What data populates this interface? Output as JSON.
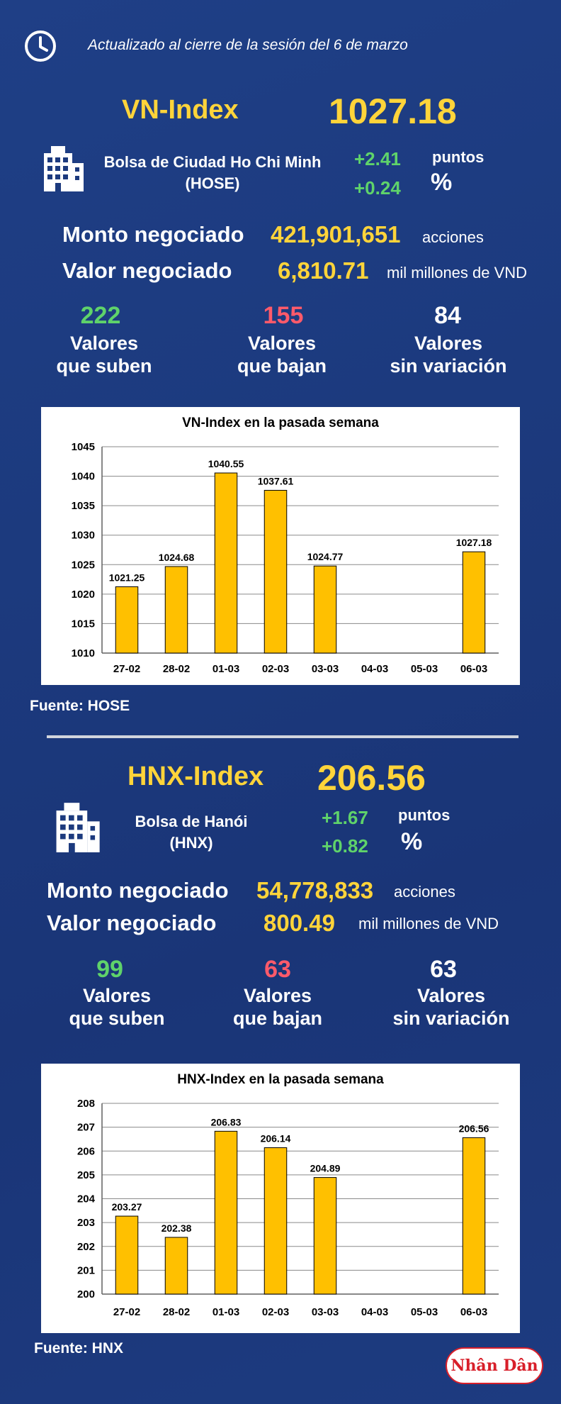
{
  "header": {
    "updated": "Actualizado al cierre de la sesión del 6 de marzo",
    "icon": "clock-icon"
  },
  "vn": {
    "name": "VN-Index",
    "value": "1027.18",
    "exchange_line1": "Bolsa de Ciudad Ho Chi Minh",
    "exchange_line2": "(HOSE)",
    "change_points": "+2.41",
    "change_points_unit": "puntos",
    "change_pct": "+0.24",
    "change_pct_unit": "%",
    "volume_label": "Monto negociado",
    "volume_value": "421,901,651",
    "volume_unit": "acciones",
    "valuetraded_label": "Valor negociado",
    "valuetraded_value": "6,810.71",
    "valuetraded_unit": "mil millones de VND",
    "up_count": "222",
    "up_label1": "Valores",
    "up_label2": "que suben",
    "down_count": "155",
    "down_label1": "Valores",
    "down_label2": "que bajan",
    "flat_count": "84",
    "flat_label1": "Valores",
    "flat_label2": "sin variación",
    "source": "Fuente: HOSE"
  },
  "hnx": {
    "name": "HNX-Index",
    "value": "206.56",
    "exchange_line1": "Bolsa de Hanói",
    "exchange_line2": "(HNX)",
    "change_points": "+1.67",
    "change_points_unit": "puntos",
    "change_pct": "+0.82",
    "change_pct_unit": "%",
    "volume_label": "Monto negociado",
    "volume_value": "54,778,833",
    "volume_unit": "acciones",
    "valuetraded_label": "Valor negociado",
    "valuetraded_value": "800.49",
    "valuetraded_unit": "mil millones de VND",
    "up_count": "99",
    "up_label1": "Valores",
    "up_label2": "que suben",
    "down_count": "63",
    "down_label1": "Valores",
    "down_label2": "que bajan",
    "flat_count": "63",
    "flat_label1": "Valores",
    "flat_label2": "sin variación",
    "source": "Fuente:  HNX"
  },
  "colors": {
    "background": "#1c3a7e",
    "accent_yellow": "#ffd43a",
    "up_green": "#5fd36a",
    "down_red": "#ff5a6a",
    "bar_fill": "#ffc000"
  },
  "logo": {
    "text": "Nhân Dân"
  },
  "chart_data": [
    {
      "type": "bar",
      "title": "VN-Index en la pasada semana",
      "categories": [
        "27-02",
        "28-02",
        "01-03",
        "02-03",
        "03-03",
        "04-03",
        "05-03",
        "06-03"
      ],
      "values": [
        1021.25,
        1024.68,
        1040.55,
        1037.61,
        1024.77,
        null,
        null,
        1027.18
      ],
      "labels": [
        "1021.25",
        "1024.68",
        "1040.55",
        "1037.61",
        "1024.77",
        "",
        "",
        "1027.18"
      ],
      "ylim": [
        1010,
        1045
      ],
      "yticks": [
        1010,
        1015,
        1020,
        1025,
        1030,
        1035,
        1040,
        1045
      ],
      "grid": true,
      "xlabel": "",
      "ylabel": ""
    },
    {
      "type": "bar",
      "title": "HNX-Index en la pasada semana",
      "categories": [
        "27-02",
        "28-02",
        "01-03",
        "02-03",
        "03-03",
        "04-03",
        "05-03",
        "06-03"
      ],
      "values": [
        203.27,
        202.38,
        206.83,
        206.14,
        204.89,
        null,
        null,
        206.56
      ],
      "labels": [
        "203.27",
        "202.38",
        "206.83",
        "206.14",
        "204.89",
        "",
        "",
        "206.56"
      ],
      "ylim": [
        200,
        208
      ],
      "yticks": [
        200,
        201,
        202,
        203,
        204,
        205,
        206,
        207,
        208
      ],
      "grid": true,
      "xlabel": "",
      "ylabel": ""
    }
  ]
}
